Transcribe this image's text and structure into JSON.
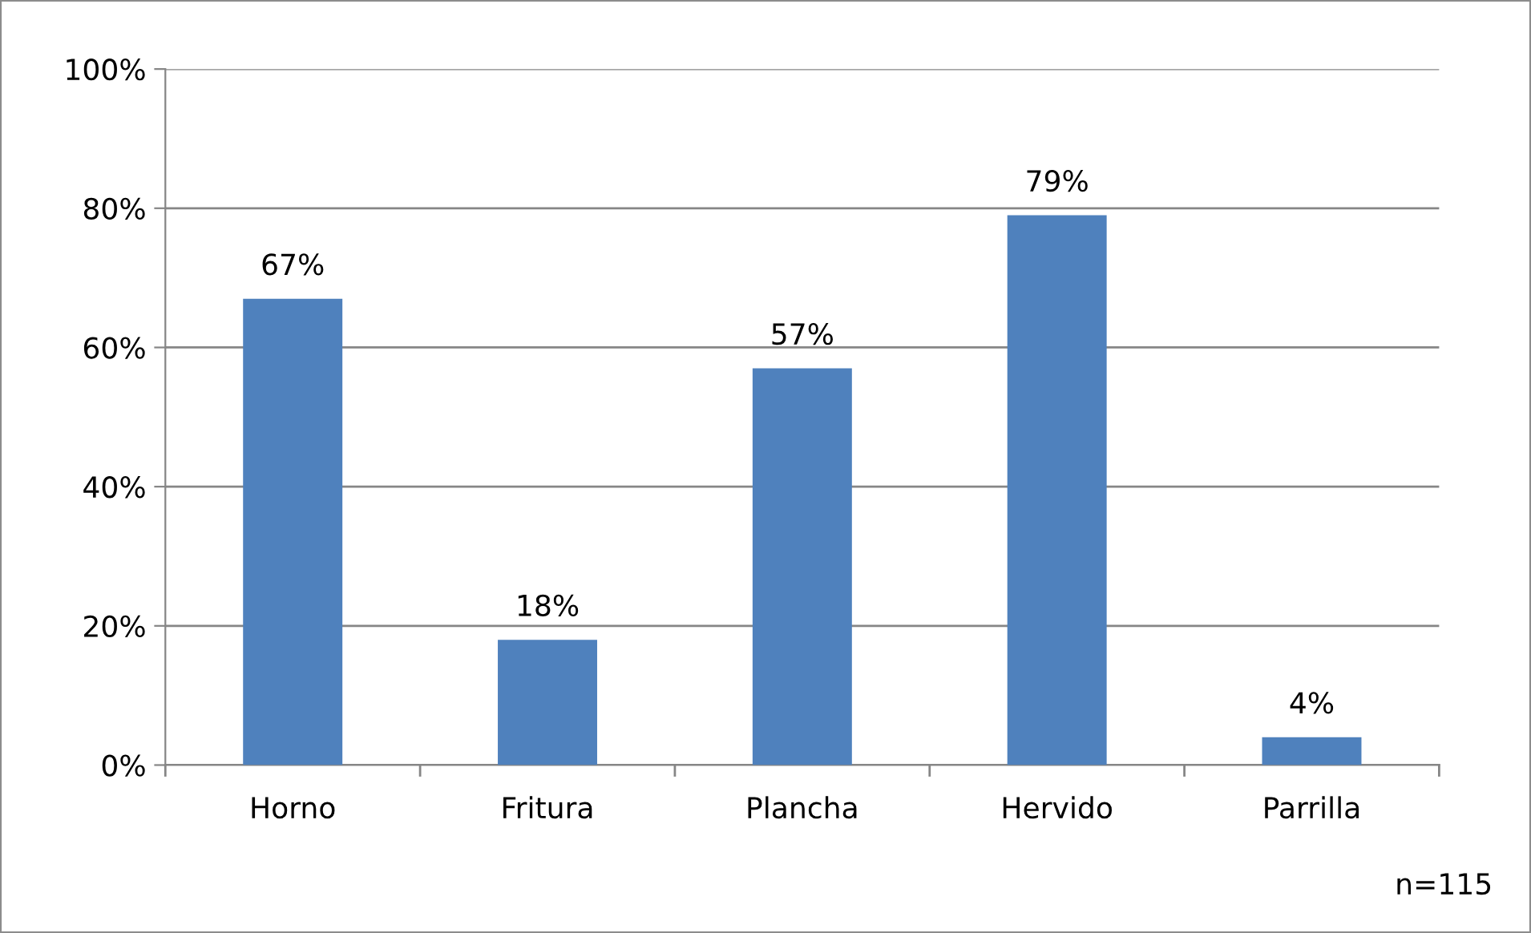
{
  "chart_data": {
    "type": "bar",
    "categories": [
      "Horno",
      "Fritura",
      "Plancha",
      "Hervido",
      "Parrilla"
    ],
    "values": [
      67,
      18,
      57,
      79,
      4
    ],
    "value_labels": [
      "67%",
      "18%",
      "57%",
      "79%",
      "4%"
    ],
    "color": "#4f81bd",
    "ylim": [
      0,
      100
    ],
    "yticks": [
      {
        "value": 0,
        "label": "0%"
      },
      {
        "value": 20,
        "label": "20%"
      },
      {
        "value": 40,
        "label": "40%"
      },
      {
        "value": 60,
        "label": "60%"
      },
      {
        "value": 80,
        "label": "80%"
      },
      {
        "value": 100,
        "label": "100%"
      }
    ],
    "grid": "y",
    "legend": false,
    "annotations": [
      "n=115"
    ]
  }
}
